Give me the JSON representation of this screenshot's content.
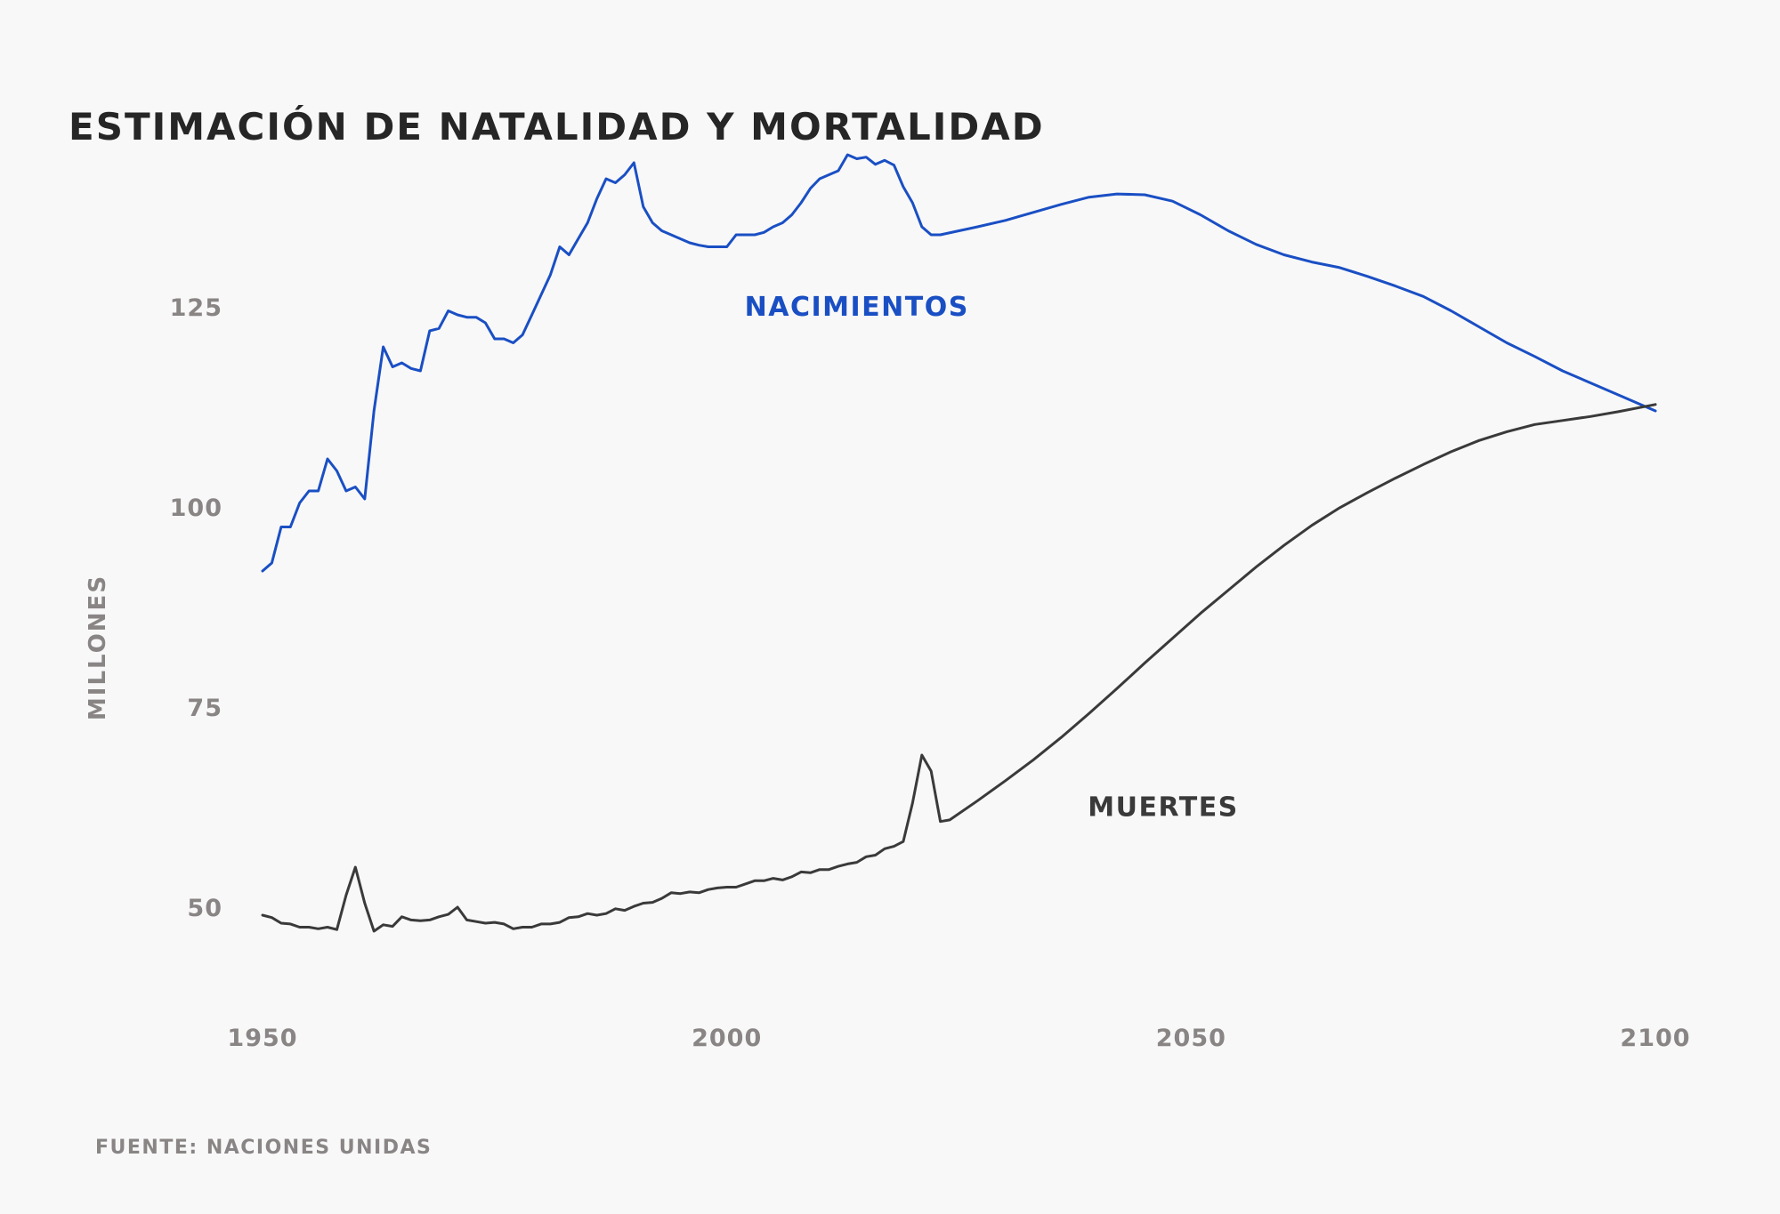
{
  "colors": {
    "background": "#f8f8f8",
    "title": "#262626",
    "axis_text": "#8a8585",
    "births": "#1a4fc4",
    "deaths": "#3a3a3a"
  },
  "chart_data": {
    "type": "line",
    "title": "ESTIMACIÓN DE NATALIDAD Y MORTALIDAD",
    "ylabel": "MILLONES",
    "xlabel": "",
    "source": "FUENTE: NACIONES UNIDAS",
    "xlim": [
      1950,
      2100
    ],
    "ylim": [
      40,
      145
    ],
    "x_ticks": [
      {
        "value": 1950,
        "label": "1950"
      },
      {
        "value": 2000,
        "label": "2000"
      },
      {
        "value": 2050,
        "label": "2050"
      },
      {
        "value": 2100,
        "label": "2100"
      }
    ],
    "y_ticks": [
      {
        "value": 50,
        "label": "50"
      },
      {
        "value": 75,
        "label": "75"
      },
      {
        "value": 100,
        "label": "100"
      },
      {
        "value": 125,
        "label": "125"
      }
    ],
    "grid": false,
    "legend": "inline labels",
    "series": [
      {
        "name": "NACIMIENTOS",
        "color": "#1a4fc4",
        "label_x": 2014,
        "label_y": 125,
        "points": [
          [
            1950,
            92
          ],
          [
            1951,
            93
          ],
          [
            1952,
            97.5
          ],
          [
            1953,
            97.5
          ],
          [
            1954,
            100.5
          ],
          [
            1955,
            102
          ],
          [
            1956,
            102
          ],
          [
            1957,
            106
          ],
          [
            1958,
            104.5
          ],
          [
            1959,
            102
          ],
          [
            1960,
            102.5
          ],
          [
            1961,
            101
          ],
          [
            1962,
            112
          ],
          [
            1963,
            120
          ],
          [
            1964,
            117.5
          ],
          [
            1965,
            118
          ],
          [
            1966,
            117.3
          ],
          [
            1967,
            117
          ],
          [
            1968,
            122
          ],
          [
            1969,
            122.3
          ],
          [
            1970,
            124.5
          ],
          [
            1971,
            124
          ],
          [
            1972,
            123.7
          ],
          [
            1973,
            123.7
          ],
          [
            1974,
            123
          ],
          [
            1975,
            121
          ],
          [
            1976,
            121
          ],
          [
            1977,
            120.5
          ],
          [
            1978,
            121.5
          ],
          [
            1979,
            124
          ],
          [
            1980,
            126.5
          ],
          [
            1981,
            129
          ],
          [
            1982,
            132.5
          ],
          [
            1983,
            131.5
          ],
          [
            1984,
            133.5
          ],
          [
            1985,
            135.5
          ],
          [
            1986,
            138.5
          ],
          [
            1987,
            141
          ],
          [
            1988,
            140.5
          ],
          [
            1989,
            141.5
          ],
          [
            1990,
            143
          ],
          [
            1991,
            137.5
          ],
          [
            1992,
            135.5
          ],
          [
            1993,
            134.5
          ],
          [
            1994,
            134
          ],
          [
            1995,
            133.5
          ],
          [
            1996,
            133
          ],
          [
            1997,
            132.7
          ],
          [
            1998,
            132.5
          ],
          [
            1999,
            132.5
          ],
          [
            2000,
            132.5
          ],
          [
            2001,
            134
          ],
          [
            2002,
            134
          ],
          [
            2003,
            134
          ],
          [
            2004,
            134.3
          ],
          [
            2005,
            135
          ],
          [
            2006,
            135.5
          ],
          [
            2007,
            136.5
          ],
          [
            2008,
            138
          ],
          [
            2009,
            139.8
          ],
          [
            2010,
            141
          ],
          [
            2011,
            141.5
          ],
          [
            2012,
            142
          ],
          [
            2013,
            144
          ],
          [
            2014,
            143.5
          ],
          [
            2015,
            143.7
          ],
          [
            2016,
            142.8
          ],
          [
            2017,
            143.3
          ],
          [
            2018,
            142.7
          ],
          [
            2019,
            140
          ],
          [
            2020,
            138
          ],
          [
            2021,
            135
          ],
          [
            2022,
            134
          ],
          [
            2023,
            134
          ],
          [
            2025,
            134.5
          ],
          [
            2027,
            135
          ],
          [
            2030,
            135.8
          ],
          [
            2033,
            136.8
          ],
          [
            2036,
            137.8
          ],
          [
            2039,
            138.7
          ],
          [
            2042,
            139.1
          ],
          [
            2045,
            139
          ],
          [
            2048,
            138.2
          ],
          [
            2051,
            136.5
          ],
          [
            2054,
            134.5
          ],
          [
            2057,
            132.8
          ],
          [
            2060,
            131.5
          ],
          [
            2063,
            130.6
          ],
          [
            2066,
            129.9
          ],
          [
            2069,
            128.8
          ],
          [
            2072,
            127.6
          ],
          [
            2075,
            126.3
          ],
          [
            2078,
            124.5
          ],
          [
            2081,
            122.5
          ],
          [
            2084,
            120.5
          ],
          [
            2087,
            118.8
          ],
          [
            2090,
            117
          ],
          [
            2093,
            115.5
          ],
          [
            2096,
            114
          ],
          [
            2100,
            112
          ]
        ]
      },
      {
        "name": "MUERTES",
        "color": "#3a3a3a",
        "label_x": 2047,
        "label_y": 62.5,
        "points": [
          [
            1950,
            49
          ],
          [
            1951,
            48.7
          ],
          [
            1952,
            48
          ],
          [
            1953,
            47.9
          ],
          [
            1954,
            47.5
          ],
          [
            1955,
            47.5
          ],
          [
            1956,
            47.3
          ],
          [
            1957,
            47.5
          ],
          [
            1958,
            47.2
          ],
          [
            1959,
            51.5
          ],
          [
            1960,
            55
          ],
          [
            1961,
            50.5
          ],
          [
            1962,
            47
          ],
          [
            1963,
            47.8
          ],
          [
            1964,
            47.6
          ],
          [
            1965,
            48.8
          ],
          [
            1966,
            48.4
          ],
          [
            1967,
            48.3
          ],
          [
            1968,
            48.4
          ],
          [
            1969,
            48.8
          ],
          [
            1970,
            49.1
          ],
          [
            1971,
            50
          ],
          [
            1972,
            48.4
          ],
          [
            1973,
            48.2
          ],
          [
            1974,
            48
          ],
          [
            1975,
            48.1
          ],
          [
            1976,
            47.9
          ],
          [
            1977,
            47.3
          ],
          [
            1978,
            47.5
          ],
          [
            1979,
            47.5
          ],
          [
            1980,
            47.9
          ],
          [
            1981,
            47.9
          ],
          [
            1982,
            48.1
          ],
          [
            1983,
            48.7
          ],
          [
            1984,
            48.8
          ],
          [
            1985,
            49.2
          ],
          [
            1986,
            49
          ],
          [
            1987,
            49.2
          ],
          [
            1988,
            49.8
          ],
          [
            1989,
            49.6
          ],
          [
            1990,
            50.1
          ],
          [
            1991,
            50.5
          ],
          [
            1992,
            50.6
          ],
          [
            1993,
            51.1
          ],
          [
            1994,
            51.8
          ],
          [
            1995,
            51.7
          ],
          [
            1996,
            51.9
          ],
          [
            1997,
            51.8
          ],
          [
            1998,
            52.2
          ],
          [
            1999,
            52.4
          ],
          [
            2000,
            52.5
          ],
          [
            2001,
            52.5
          ],
          [
            2002,
            52.9
          ],
          [
            2003,
            53.3
          ],
          [
            2004,
            53.3
          ],
          [
            2005,
            53.6
          ],
          [
            2006,
            53.4
          ],
          [
            2007,
            53.8
          ],
          [
            2008,
            54.4
          ],
          [
            2009,
            54.3
          ],
          [
            2010,
            54.7
          ],
          [
            2011,
            54.7
          ],
          [
            2012,
            55.1
          ],
          [
            2013,
            55.4
          ],
          [
            2014,
            55.6
          ],
          [
            2015,
            56.3
          ],
          [
            2016,
            56.5
          ],
          [
            2017,
            57.3
          ],
          [
            2018,
            57.6
          ],
          [
            2019,
            58.2
          ],
          [
            2020,
            63
          ],
          [
            2021,
            69
          ],
          [
            2022,
            67
          ],
          [
            2023,
            60.7
          ],
          [
            2024,
            60.9
          ],
          [
            2027,
            63.3
          ],
          [
            2030,
            65.8
          ],
          [
            2033,
            68.4
          ],
          [
            2036,
            71.2
          ],
          [
            2039,
            74.2
          ],
          [
            2042,
            77.3
          ],
          [
            2045,
            80.5
          ],
          [
            2048,
            83.6
          ],
          [
            2051,
            86.7
          ],
          [
            2054,
            89.6
          ],
          [
            2057,
            92.5
          ],
          [
            2060,
            95.2
          ],
          [
            2063,
            97.7
          ],
          [
            2066,
            99.9
          ],
          [
            2069,
            101.8
          ],
          [
            2072,
            103.6
          ],
          [
            2075,
            105.3
          ],
          [
            2078,
            106.9
          ],
          [
            2081,
            108.3
          ],
          [
            2084,
            109.4
          ],
          [
            2087,
            110.3
          ],
          [
            2090,
            110.8
          ],
          [
            2093,
            111.3
          ],
          [
            2096,
            111.9
          ],
          [
            2100,
            112.8
          ]
        ]
      }
    ]
  }
}
